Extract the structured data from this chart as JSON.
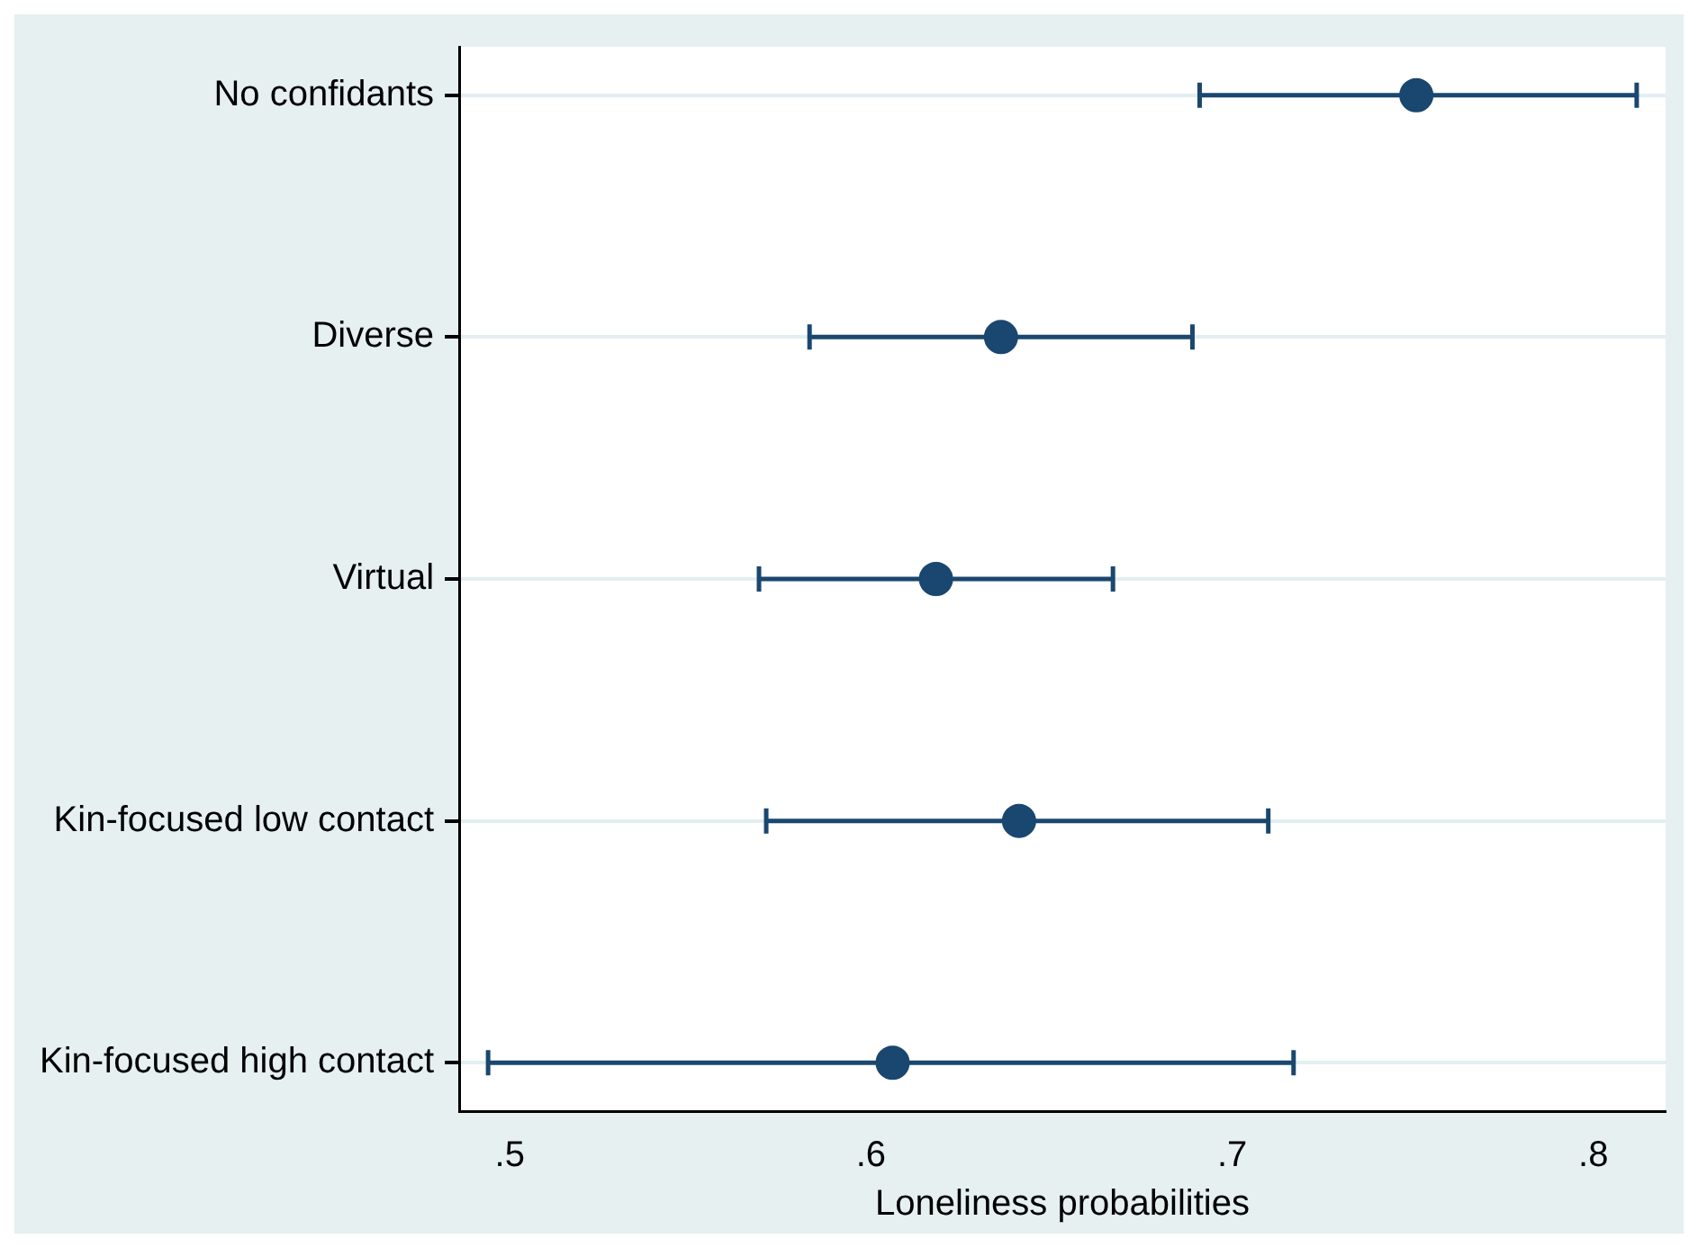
{
  "chart_data": {
    "type": "scatter",
    "orientation": "horizontal",
    "xlabel": "Loneliness probabilities",
    "categories": [
      "No confidants",
      "Diverse",
      "Virtual",
      "Kin-focused low contact",
      "Kin-focused high contact"
    ],
    "series": [
      {
        "color": "#1a476f",
        "values": [
          0.751,
          0.636,
          0.618,
          0.641,
          0.606
        ],
        "errors": [
          [
            0.691,
            0.812
          ],
          [
            0.583,
            0.689
          ],
          [
            0.569,
            0.667
          ],
          [
            0.571,
            0.71
          ],
          [
            0.494,
            0.717
          ]
        ]
      }
    ],
    "xlim": [
      0.486,
      0.82
    ],
    "xticks": [
      {
        "value": 0.5,
        "label": ".5"
      },
      {
        "value": 0.6,
        "label": ".6"
      },
      {
        "value": 0.7,
        "label": ".7"
      },
      {
        "value": 0.8,
        "label": ".8"
      }
    ],
    "grid": "y",
    "marker": "circle"
  }
}
